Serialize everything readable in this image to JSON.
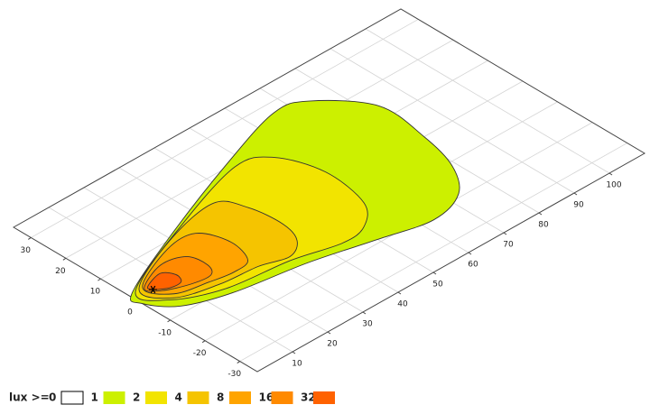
{
  "chart_data": {
    "type": "contour",
    "xlim": [
      0,
      110
    ],
    "ylim": [
      -35,
      35
    ],
    "xticks": [
      10,
      20,
      30,
      40,
      50,
      60,
      70,
      80,
      90,
      100
    ],
    "yticks": [
      -30,
      -20,
      -10,
      0,
      10,
      20,
      30
    ],
    "grid": true,
    "legend_title": "lux >=",
    "levels": [
      0,
      1,
      2,
      4,
      8,
      16,
      32
    ],
    "level_colors": [
      "#ffffff",
      "#ccf000",
      "#f2e400",
      "#f5c400",
      "#ffa400",
      "#ff8a00",
      "#ff6200"
    ],
    "contours": [
      {
        "x": [
          1,
          21,
          47,
          66,
          74,
          83,
          82,
          79,
          73,
          63,
          50,
          34,
          16,
          5,
          0
        ],
        "y": [
          2,
          11,
          21,
          27,
          25,
          14,
          0,
          -11,
          -19,
          -22,
          -19,
          -15,
          -12,
          -8,
          -2
        ]
      },
      {
        "x": [
          2,
          25,
          47,
          55,
          59,
          57,
          51,
          44,
          32,
          16,
          5
        ],
        "y": [
          2,
          12,
          19,
          16,
          5,
          -8,
          -14,
          -15,
          -12,
          -10,
          -5
        ]
      },
      {
        "x": [
          3,
          20,
          35,
          39,
          40,
          38,
          33,
          26,
          16,
          6
        ],
        "y": [
          2,
          10,
          13,
          7,
          -2,
          -8,
          -11,
          -9,
          -8,
          -5
        ]
      },
      {
        "x": [
          4,
          17,
          25,
          28,
          26,
          21,
          15,
          7
        ],
        "y": [
          2,
          8,
          8,
          1,
          -6,
          -7,
          -6,
          -4
        ]
      },
      {
        "x": [
          4,
          12,
          18,
          19,
          17,
          12,
          6
        ],
        "y": [
          1.5,
          5,
          3.5,
          -1.5,
          -4.5,
          -4,
          -1.5
        ]
      },
      {
        "x": [
          5,
          10,
          12,
          11,
          8,
          5
        ],
        "y": [
          1.5,
          3,
          0.5,
          -2,
          -2,
          0
        ]
      }
    ],
    "source": {
      "x": 5,
      "y": 0
    }
  }
}
